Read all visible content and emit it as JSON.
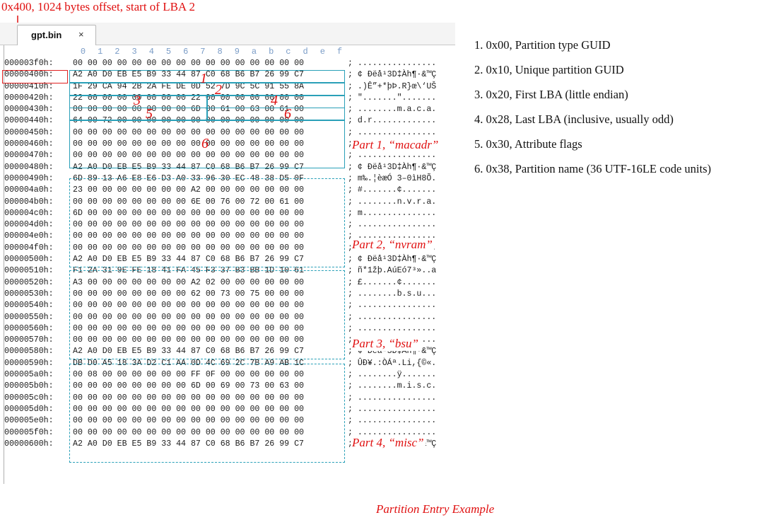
{
  "top_caption": "0x400, 1024 bytes offset, start of LBA 2",
  "bottom_caption": "Partition Entry Example",
  "colors": {
    "annotation_red": "#e01010",
    "box_teal": "#2aa0b8",
    "column_header_blue": "#7a9cc7"
  },
  "editor": {
    "tab_label": "gpt.bin",
    "tab_close": "×",
    "column_header": [
      "0",
      "1",
      "2",
      "3",
      "4",
      "5",
      "6",
      "7",
      "8",
      "9",
      "a",
      "b",
      "c",
      "d",
      "e",
      "f"
    ],
    "rows": [
      {
        "offset": "000003f0h:",
        "hex": "00 00 00 00 00 00 00 00 00 00 00 00 00 00 00 00",
        "ascii": "; ................"
      },
      {
        "offset": "00000400h:",
        "hex": "A2 A0 D0 EB E5 B9 33 44 87 C0 68 B6 B7 26 99 C7",
        "ascii": "; ¢ Ðëå¹3D‡Àh¶·&™Ç"
      },
      {
        "offset": "00000410h:",
        "hex": "1F 29 CA 94 2B 2A FE DE 0D 52 7D 9C 5C 91 55 8A",
        "ascii": "; .)Ê”+*þÞ.R}œ\\‘UŠ"
      },
      {
        "offset": "00000420h:",
        "hex": "22 00 00 00 00 00 00 00 22 00 00 00 00 00 00 00",
        "ascii": "; \".......\"......."
      },
      {
        "offset": "00000430h:",
        "hex": "00 00 00 00 00 00 00 00 6D 00 61 00 63 00 61 00",
        "ascii": "; ........m.a.c.a."
      },
      {
        "offset": "00000440h:",
        "hex": "64 00 72 00 00 00 00 00 00 00 00 00 00 00 00 00",
        "ascii": "; d.r............."
      },
      {
        "offset": "00000450h:",
        "hex": "00 00 00 00 00 00 00 00 00 00 00 00 00 00 00 00",
        "ascii": "; ................"
      },
      {
        "offset": "00000460h:",
        "hex": "00 00 00 00 00 00 00 00 00 00 00 00 00 00 00 00",
        "ascii": "; ................"
      },
      {
        "offset": "00000470h:",
        "hex": "00 00 00 00 00 00 00 00 00 00 00 00 00 00 00 00",
        "ascii": "; ................"
      },
      {
        "offset": "00000480h:",
        "hex": "A2 A0 D0 EB E5 B9 33 44 87 C0 68 B6 B7 26 99 C7",
        "ascii": "; ¢ Ðëå¹3D‡Àh¶·&™Ç"
      },
      {
        "offset": "00000490h:",
        "hex": "6D 89 13 A6 E8 E6 D3 A0 33 96 30 EC 48 38 D5 0F",
        "ascii": "; m‰.¦èæÓ 3–0ìH8Õ."
      },
      {
        "offset": "000004a0h:",
        "hex": "23 00 00 00 00 00 00 00 A2 00 00 00 00 00 00 00",
        "ascii": "; #.......¢......."
      },
      {
        "offset": "000004b0h:",
        "hex": "00 00 00 00 00 00 00 00 6E 00 76 00 72 00 61 00",
        "ascii": "; ........n.v.r.a."
      },
      {
        "offset": "000004c0h:",
        "hex": "6D 00 00 00 00 00 00 00 00 00 00 00 00 00 00 00",
        "ascii": "; m..............."
      },
      {
        "offset": "000004d0h:",
        "hex": "00 00 00 00 00 00 00 00 00 00 00 00 00 00 00 00",
        "ascii": "; ................"
      },
      {
        "offset": "000004e0h:",
        "hex": "00 00 00 00 00 00 00 00 00 00 00 00 00 00 00 00",
        "ascii": "; ................"
      },
      {
        "offset": "000004f0h:",
        "hex": "00 00 00 00 00 00 00 00 00 00 00 00 00 00 00 00",
        "ascii": "; ................"
      },
      {
        "offset": "00000500h:",
        "hex": "A2 A0 D0 EB E5 B9 33 44 87 C0 68 B6 B7 26 99 C7",
        "ascii": "; ¢ Ðëå¹3D‡Àh¶·&™Ç"
      },
      {
        "offset": "00000510h:",
        "hex": "F1 2A 31 9E FE 18 41 FA 45 F3 37 B3 BB 1D 10 61",
        "ascii": "; ñ*1žþ.AúEó7³»..a"
      },
      {
        "offset": "00000520h:",
        "hex": "A3 00 00 00 00 00 00 00 A2 02 00 00 00 00 00 00",
        "ascii": "; £.......¢......."
      },
      {
        "offset": "00000530h:",
        "hex": "00 00 00 00 00 00 00 00 62 00 73 00 75 00 00 00",
        "ascii": "; ........b.s.u..."
      },
      {
        "offset": "00000540h:",
        "hex": "00 00 00 00 00 00 00 00 00 00 00 00 00 00 00 00",
        "ascii": "; ................"
      },
      {
        "offset": "00000550h:",
        "hex": "00 00 00 00 00 00 00 00 00 00 00 00 00 00 00 00",
        "ascii": "; ................"
      },
      {
        "offset": "00000560h:",
        "hex": "00 00 00 00 00 00 00 00 00 00 00 00 00 00 00 00",
        "ascii": "; ................"
      },
      {
        "offset": "00000570h:",
        "hex": "00 00 00 00 00 00 00 00 00 00 00 00 00 00 00 00",
        "ascii": "; ................"
      },
      {
        "offset": "00000580h:",
        "hex": "A2 A0 D0 EB E5 B9 33 44 87 C0 68 B6 B7 26 99 C7",
        "ascii": "; ¢ Ðëå¹3D‡Àh¶·&™Ç"
      },
      {
        "offset": "00000590h:",
        "hex": "DB D0 A5 18 3A D2 C1 AA 0D 4C 69 2C 7B A9 AB 1C",
        "ascii": "; ÛÐ¥.:ÒÁª.Li,{©«."
      },
      {
        "offset": "000005a0h:",
        "hex": "00 08 00 00 00 00 00 00 FF 0F 00 00 00 00 00 00",
        "ascii": "; ........ÿ......."
      },
      {
        "offset": "000005b0h:",
        "hex": "00 00 00 00 00 00 00 00 6D 00 69 00 73 00 63 00",
        "ascii": "; ........m.i.s.c."
      },
      {
        "offset": "000005c0h:",
        "hex": "00 00 00 00 00 00 00 00 00 00 00 00 00 00 00 00",
        "ascii": "; ................"
      },
      {
        "offset": "000005d0h:",
        "hex": "00 00 00 00 00 00 00 00 00 00 00 00 00 00 00 00",
        "ascii": "; ................"
      },
      {
        "offset": "000005e0h:",
        "hex": "00 00 00 00 00 00 00 00 00 00 00 00 00 00 00 00",
        "ascii": "; ................"
      },
      {
        "offset": "000005f0h:",
        "hex": "00 00 00 00 00 00 00 00 00 00 00 00 00 00 00 00",
        "ascii": "; ................"
      },
      {
        "offset": "00000600h:",
        "hex": "A2 A0 D0 EB E5 B9 33 44 87 C0 68 B6 B7 26 99 C7",
        "ascii": "; ¢ Ðëå¹3D‡Àh¶·&™Ç"
      }
    ]
  },
  "field_numbers": [
    "1",
    "2",
    "3",
    "4",
    "5",
    "6"
  ],
  "part_labels": [
    "Part 1, “macadr”",
    "Part 2, “nvram”",
    "Part 3, “bsu”",
    "Part 4, “misc”"
  ],
  "legend": [
    "1. 0x00, Partition type GUID",
    "2. 0x10, Unique partition GUID",
    "3. 0x20, First LBA (little endian)",
    "4. 0x28, Last LBA (inclusive, usually odd)",
    "5. 0x30, Attribute flags",
    "6. 0x38, Partition name (36 UTF-16LE code units)"
  ]
}
